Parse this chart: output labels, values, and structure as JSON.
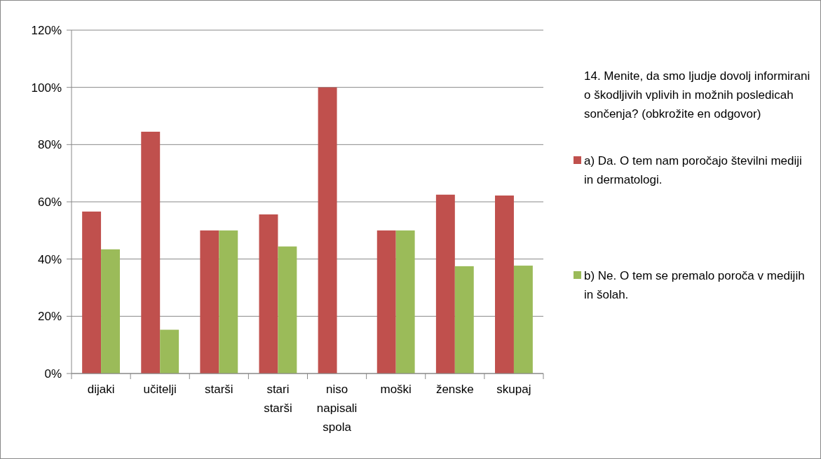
{
  "chart_data": {
    "type": "bar",
    "categories": [
      "dijaki",
      "učitelji",
      "starši",
      "stari starši",
      "niso napisali spola",
      "moški",
      "ženske",
      "skupaj"
    ],
    "series": [
      {
        "name": "a) Da. O tem nam poročajo številni mediji in dermatologi.",
        "color": "#c0504d",
        "values": [
          56.6,
          84.5,
          50,
          55.6,
          100,
          50,
          62.5,
          62.2
        ]
      },
      {
        "name": "b) Ne. O tem se premalo poroča v medijih in šolah.",
        "color": "#9bbb59",
        "values": [
          43.4,
          15.3,
          50,
          44.4,
          0,
          50,
          37.5,
          37.7
        ]
      }
    ],
    "legend_title": "14. Menite, da smo ljudje dovolj informirani o škodljivih vplivih in možnih posledicah sončenja? (obkrožite en odgovor)",
    "ylim": [
      0,
      120
    ],
    "yticks": [
      {
        "value": 0,
        "label": "0%"
      },
      {
        "value": 20,
        "label": "20%"
      },
      {
        "value": 40,
        "label": "40%"
      },
      {
        "value": 60,
        "label": "60%"
      },
      {
        "value": 80,
        "label": "80%"
      },
      {
        "value": 100,
        "label": "100%"
      },
      {
        "value": 120,
        "label": "120%"
      }
    ],
    "grid": "y",
    "legend": "right"
  }
}
